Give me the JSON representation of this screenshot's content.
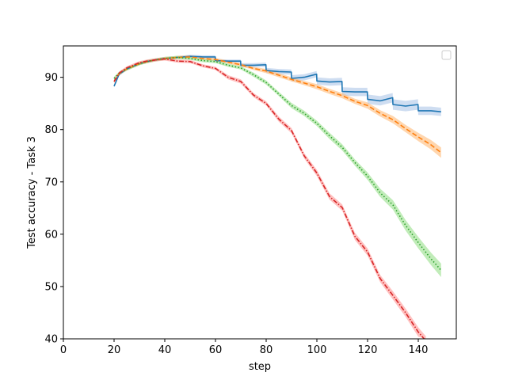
{
  "chart_data": {
    "type": "line",
    "title": "",
    "xlabel": "step",
    "ylabel": "Test accuracy - Task 3",
    "xlim": [
      0,
      155
    ],
    "ylim": [
      40,
      96
    ],
    "xticks": [
      0,
      20,
      40,
      60,
      80,
      100,
      120,
      140
    ],
    "yticks": [
      40,
      50,
      60,
      70,
      80,
      90
    ],
    "grid": false,
    "legend": {
      "placement": "top-right",
      "entries": []
    },
    "series": [
      {
        "color": "#1f77b4",
        "style": "solid",
        "band_color": "#aec7e8",
        "x": [
          20,
          22,
          25,
          28,
          30,
          33,
          36,
          40,
          45,
          50,
          55,
          59.9,
          60,
          65,
          69.9,
          70,
          75,
          79.9,
          80,
          85,
          89.9,
          90,
          95,
          99.9,
          100,
          105,
          109.9,
          110,
          115,
          119.9,
          120,
          125,
          129.9,
          130,
          135,
          139.9,
          140,
          145,
          149
        ],
        "y": [
          88.3,
          90.6,
          91.6,
          92.2,
          92.6,
          93.0,
          93.3,
          93.6,
          93.8,
          94.0,
          93.9,
          93.9,
          93.2,
          93.1,
          93.1,
          92.3,
          92.3,
          92.4,
          91.3,
          91.1,
          91.0,
          89.8,
          90.0,
          90.6,
          89.3,
          89.1,
          89.2,
          87.3,
          87.2,
          87.2,
          85.8,
          85.5,
          86.1,
          84.8,
          84.5,
          84.8,
          83.6,
          83.6,
          83.4
        ],
        "band": [
          0.2,
          0.3,
          0.3,
          0.3,
          0.3,
          0.3,
          0.3,
          0.3,
          0.3,
          0.3,
          0.3,
          0.3,
          0.3,
          0.3,
          0.3,
          0.4,
          0.4,
          0.4,
          0.5,
          0.5,
          0.5,
          0.6,
          0.6,
          0.6,
          0.7,
          0.7,
          0.7,
          0.8,
          0.8,
          0.8,
          0.9,
          0.9,
          0.9,
          1.0,
          1.0,
          1.0,
          0.8,
          0.8,
          0.8
        ]
      },
      {
        "color": "#ff7f0e",
        "style": "dashed",
        "band_color": "#ffbb78",
        "x": [
          20,
          22,
          25,
          28,
          30,
          33,
          36,
          40,
          45,
          50,
          55,
          60,
          65,
          70,
          75,
          80,
          85,
          90,
          95,
          100,
          105,
          110,
          115,
          120,
          125,
          130,
          135,
          140,
          145,
          149
        ],
        "y": [
          89.2,
          90.7,
          91.6,
          92.2,
          92.6,
          93.0,
          93.3,
          93.6,
          93.8,
          93.9,
          93.6,
          93.4,
          92.9,
          92.4,
          91.7,
          91.2,
          90.4,
          89.6,
          88.9,
          88.2,
          87.3,
          86.5,
          85.4,
          84.6,
          83.1,
          81.9,
          80.2,
          78.6,
          77.1,
          75.6
        ],
        "band": [
          0.3,
          0.3,
          0.3,
          0.3,
          0.3,
          0.3,
          0.3,
          0.3,
          0.3,
          0.3,
          0.3,
          0.3,
          0.3,
          0.3,
          0.3,
          0.4,
          0.4,
          0.4,
          0.4,
          0.5,
          0.5,
          0.5,
          0.5,
          0.6,
          0.6,
          0.7,
          0.7,
          0.8,
          0.9,
          1.0
        ]
      },
      {
        "color": "#2ca02c",
        "style": "dotted",
        "band_color": "#98df8a",
        "x": [
          20,
          22,
          25,
          28,
          30,
          33,
          36,
          40,
          45,
          50,
          55,
          60,
          65,
          70,
          75,
          80,
          85,
          90,
          95,
          100,
          105,
          110,
          115,
          120,
          125,
          130,
          135,
          140,
          145,
          149
        ],
        "y": [
          89.8,
          90.8,
          91.6,
          92.2,
          92.6,
          93.0,
          93.3,
          93.6,
          93.8,
          93.6,
          93.2,
          93.0,
          92.3,
          91.8,
          90.5,
          89.0,
          86.8,
          84.6,
          83.1,
          81.2,
          78.8,
          76.6,
          73.7,
          71.1,
          67.9,
          65.6,
          61.7,
          58.4,
          55.3,
          53.1
        ],
        "band": [
          0.3,
          0.3,
          0.3,
          0.3,
          0.3,
          0.3,
          0.3,
          0.3,
          0.3,
          0.3,
          0.3,
          0.3,
          0.3,
          0.3,
          0.4,
          0.4,
          0.4,
          0.5,
          0.5,
          0.5,
          0.6,
          0.6,
          0.6,
          0.7,
          0.8,
          0.9,
          1.0,
          1.1,
          1.2,
          1.3
        ]
      },
      {
        "color": "#d62728",
        "style": "dashdot",
        "band_color": "#ff9896",
        "x": [
          20,
          22,
          25,
          28,
          30,
          33,
          36,
          40,
          45,
          50,
          55,
          60,
          65,
          70,
          75,
          80,
          85,
          90,
          95,
          100,
          105,
          110,
          115,
          120,
          125,
          130,
          135,
          140,
          143
        ],
        "y": [
          89.2,
          90.8,
          91.8,
          92.4,
          92.8,
          93.1,
          93.3,
          93.5,
          93.1,
          93.0,
          92.2,
          91.7,
          90.0,
          89.2,
          86.6,
          85.0,
          82.0,
          79.8,
          75.0,
          71.7,
          67.2,
          65.1,
          59.6,
          56.6,
          51.5,
          48.3,
          45.0,
          41.3,
          39.6
        ],
        "band": [
          0.3,
          0.3,
          0.3,
          0.3,
          0.3,
          0.3,
          0.3,
          0.3,
          0.3,
          0.3,
          0.3,
          0.3,
          0.4,
          0.4,
          0.4,
          0.4,
          0.5,
          0.5,
          0.5,
          0.6,
          0.6,
          0.6,
          0.7,
          0.7,
          0.7,
          0.8,
          0.8,
          0.9,
          0.9
        ]
      }
    ]
  }
}
